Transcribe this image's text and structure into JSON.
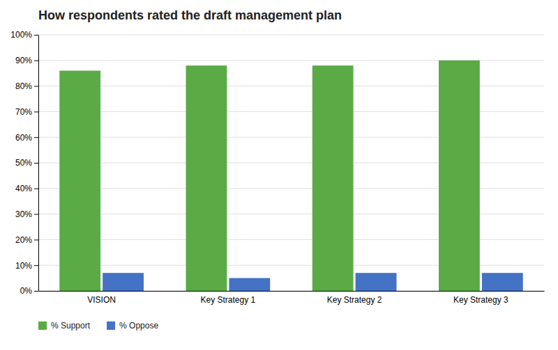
{
  "chart_data": {
    "type": "bar",
    "title": "How respondents rated the draft management plan",
    "categories": [
      "VISION",
      "Key Strategy 1",
      "Key Strategy 2",
      "Key Strategy 3"
    ],
    "series": [
      {
        "name": "% Support",
        "color": "#5aab46",
        "values": [
          86,
          88,
          88,
          90
        ]
      },
      {
        "name": "% Oppose",
        "color": "#4472c4",
        "values": [
          7,
          5,
          7,
          7
        ]
      }
    ],
    "ylim": [
      0,
      100
    ],
    "yticks": [
      {
        "value": 0,
        "label": "0%"
      },
      {
        "value": 10,
        "label": "10%"
      },
      {
        "value": 20,
        "label": "20%"
      },
      {
        "value": 30,
        "label": "30%"
      },
      {
        "value": 40,
        "label": "40%"
      },
      {
        "value": 50,
        "label": "50%"
      },
      {
        "value": 60,
        "label": "60%"
      },
      {
        "value": 70,
        "label": "70%"
      },
      {
        "value": 80,
        "label": "80%"
      },
      {
        "value": 90,
        "label": "90%"
      },
      {
        "value": 100,
        "label": "100%"
      }
    ],
    "grid": true,
    "legend": "bottom left"
  }
}
